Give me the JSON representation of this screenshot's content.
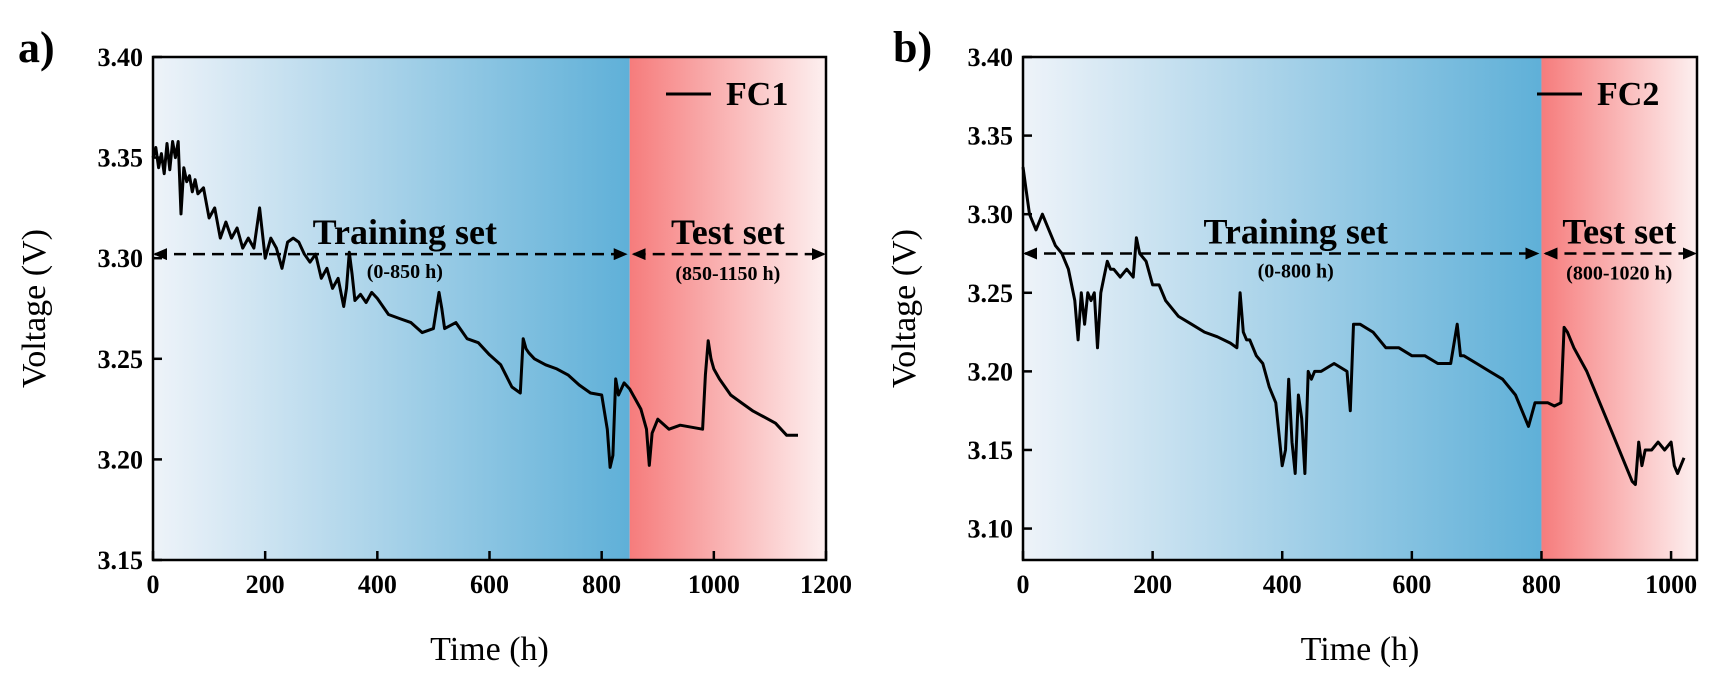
{
  "chart_data": [
    {
      "panel": "a)",
      "type": "line",
      "xlabel": "Time (h)",
      "ylabel": "Voltage (V)",
      "xlim": [
        0,
        1200
      ],
      "ylim": [
        3.15,
        3.4
      ],
      "xticks": [
        "0",
        "200",
        "400",
        "600",
        "800",
        "1000",
        "1200"
      ],
      "yticks": [
        "3.15",
        "3.20",
        "3.25",
        "3.30",
        "3.35",
        "3.40"
      ],
      "legend": "FC1",
      "legend_position": "top-right",
      "split_time": 850,
      "regions": [
        {
          "name": "Training set",
          "range": "(0-850 h)",
          "color": "#5fb0d8"
        },
        {
          "name": "Test set",
          "range": "(850-1150 h)",
          "color": "#f67c7c"
        }
      ],
      "arrow_voltage": 3.302,
      "series": [
        {
          "name": "FC1",
          "color": "#000000",
          "x": [
            0,
            5,
            10,
            15,
            20,
            25,
            30,
            35,
            40,
            45,
            50,
            55,
            60,
            65,
            70,
            75,
            80,
            90,
            100,
            110,
            120,
            130,
            140,
            150,
            160,
            170,
            180,
            190,
            200,
            210,
            220,
            230,
            240,
            250,
            260,
            270,
            280,
            290,
            300,
            310,
            320,
            330,
            340,
            345,
            350,
            355,
            360,
            370,
            380,
            390,
            400,
            420,
            440,
            460,
            480,
            500,
            510,
            515,
            520,
            540,
            560,
            580,
            600,
            620,
            640,
            655,
            660,
            665,
            670,
            680,
            700,
            720,
            740,
            760,
            780,
            800,
            810,
            815,
            820,
            825,
            830,
            840,
            850,
            870,
            880,
            885,
            890,
            900,
            920,
            940,
            960,
            980,
            985,
            990,
            995,
            1000,
            1010,
            1030,
            1050,
            1070,
            1090,
            1110,
            1130,
            1150
          ],
          "y": [
            3.35,
            3.355,
            3.345,
            3.352,
            3.342,
            3.357,
            3.344,
            3.358,
            3.35,
            3.358,
            3.322,
            3.345,
            3.338,
            3.341,
            3.333,
            3.339,
            3.332,
            3.335,
            3.32,
            3.325,
            3.31,
            3.318,
            3.31,
            3.315,
            3.305,
            3.31,
            3.305,
            3.325,
            3.3,
            3.31,
            3.305,
            3.295,
            3.308,
            3.31,
            3.308,
            3.302,
            3.298,
            3.302,
            3.29,
            3.295,
            3.285,
            3.29,
            3.276,
            3.285,
            3.303,
            3.292,
            3.279,
            3.282,
            3.278,
            3.283,
            3.28,
            3.272,
            3.27,
            3.268,
            3.263,
            3.265,
            3.283,
            3.275,
            3.265,
            3.268,
            3.26,
            3.258,
            3.252,
            3.247,
            3.236,
            3.233,
            3.26,
            3.255,
            3.253,
            3.25,
            3.247,
            3.245,
            3.242,
            3.237,
            3.233,
            3.232,
            3.215,
            3.196,
            3.202,
            3.24,
            3.232,
            3.238,
            3.235,
            3.225,
            3.215,
            3.197,
            3.213,
            3.22,
            3.215,
            3.217,
            3.216,
            3.215,
            3.242,
            3.259,
            3.25,
            3.245,
            3.24,
            3.232,
            3.228,
            3.224,
            3.221,
            3.218,
            3.212,
            3.212
          ]
        }
      ]
    },
    {
      "panel": "b)",
      "type": "line",
      "xlabel": "Time (h)",
      "ylabel": "Voltage (V)",
      "xlim": [
        0,
        1040
      ],
      "ylim": [
        3.08,
        3.4
      ],
      "xticks": [
        "0",
        "200",
        "400",
        "600",
        "800",
        "1000"
      ],
      "yticks": [
        "3.10",
        "3.15",
        "3.20",
        "3.25",
        "3.30",
        "3.35",
        "3.40"
      ],
      "legend": "FC2",
      "legend_position": "top-right",
      "split_time": 800,
      "regions": [
        {
          "name": "Training set",
          "range": "(0-800 h)",
          "color": "#5fb0d8"
        },
        {
          "name": "Test set",
          "range": "(800-1020 h)",
          "color": "#f67c7c"
        }
      ],
      "arrow_voltage": 3.275,
      "series": [
        {
          "name": "FC2",
          "color": "#000000",
          "x": [
            0,
            5,
            10,
            20,
            30,
            40,
            50,
            60,
            70,
            80,
            85,
            90,
            95,
            100,
            105,
            110,
            115,
            120,
            125,
            130,
            135,
            140,
            150,
            160,
            170,
            175,
            180,
            190,
            200,
            210,
            220,
            240,
            260,
            280,
            300,
            320,
            330,
            335,
            340,
            345,
            350,
            360,
            370,
            380,
            390,
            400,
            405,
            410,
            415,
            420,
            425,
            430,
            435,
            440,
            445,
            450,
            460,
            480,
            500,
            505,
            510,
            520,
            540,
            560,
            580,
            600,
            620,
            640,
            660,
            670,
            675,
            680,
            700,
            720,
            740,
            760,
            770,
            780,
            790,
            800,
            810,
            820,
            830,
            835,
            840,
            850,
            870,
            890,
            910,
            930,
            940,
            945,
            950,
            955,
            960,
            970,
            980,
            990,
            1000,
            1005,
            1010,
            1020
          ],
          "y": [
            3.33,
            3.315,
            3.3,
            3.29,
            3.3,
            3.29,
            3.28,
            3.275,
            3.265,
            3.245,
            3.22,
            3.25,
            3.23,
            3.25,
            3.245,
            3.25,
            3.215,
            3.25,
            3.26,
            3.27,
            3.265,
            3.265,
            3.26,
            3.265,
            3.26,
            3.285,
            3.275,
            3.27,
            3.255,
            3.255,
            3.245,
            3.235,
            3.23,
            3.225,
            3.222,
            3.218,
            3.215,
            3.25,
            3.225,
            3.22,
            3.22,
            3.21,
            3.205,
            3.19,
            3.18,
            3.14,
            3.15,
            3.195,
            3.155,
            3.135,
            3.185,
            3.17,
            3.135,
            3.2,
            3.195,
            3.2,
            3.2,
            3.205,
            3.2,
            3.175,
            3.23,
            3.23,
            3.225,
            3.215,
            3.215,
            3.21,
            3.21,
            3.205,
            3.205,
            3.23,
            3.21,
            3.21,
            3.205,
            3.2,
            3.195,
            3.185,
            3.175,
            3.165,
            3.18,
            3.18,
            3.18,
            3.178,
            3.18,
            3.228,
            3.225,
            3.215,
            3.2,
            3.18,
            3.16,
            3.14,
            3.13,
            3.128,
            3.155,
            3.14,
            3.15,
            3.15,
            3.155,
            3.15,
            3.155,
            3.14,
            3.135,
            3.145
          ]
        }
      ]
    }
  ]
}
